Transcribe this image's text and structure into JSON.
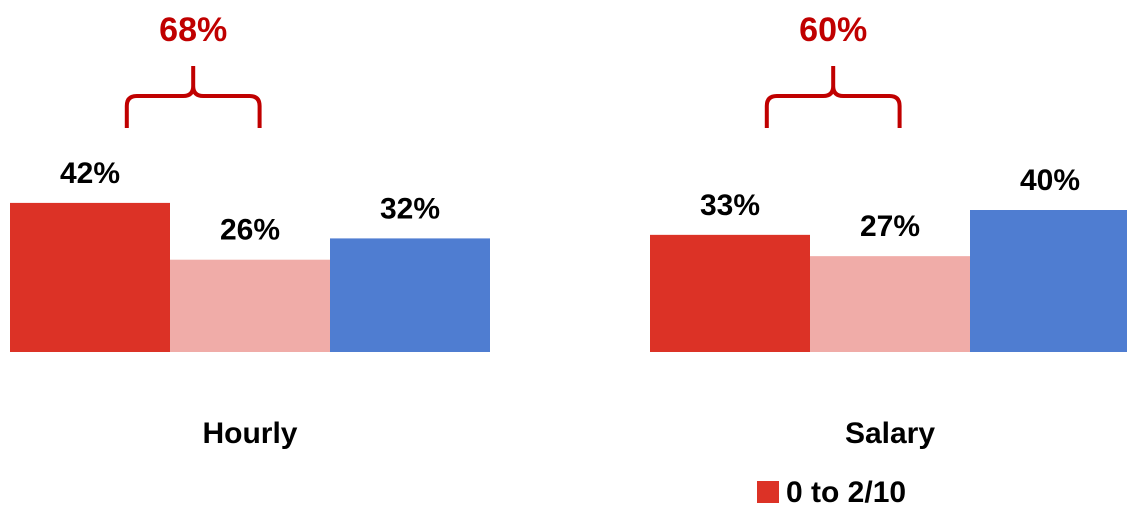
{
  "chart_data": {
    "type": "bar",
    "categories": [
      "Hourly",
      "Salary"
    ],
    "series": [
      {
        "values": [
          42,
          33
        ],
        "color": "#dc3226"
      },
      {
        "values": [
          26,
          27
        ],
        "color": "#f0aca8"
      },
      {
        "values": [
          32,
          40
        ],
        "color": "#4f7dd1"
      }
    ],
    "value_labels": [
      [
        "42%",
        "26%",
        "32%"
      ],
      [
        "33%",
        "27%",
        "40%"
      ]
    ],
    "bracket_annotations": [
      {
        "category": "Hourly",
        "label": "68%",
        "spans_series": [
          0,
          1
        ]
      },
      {
        "category": "Salary",
        "label": "60%",
        "spans_series": [
          0,
          1
        ]
      }
    ],
    "legend": {
      "items": [
        {
          "label": "0 to 2/10",
          "color": "#dc3226"
        }
      ],
      "position": "bottom-right"
    },
    "annotation_color": "#c00000",
    "ylim": [
      0,
      100
    ],
    "grid": false
  }
}
